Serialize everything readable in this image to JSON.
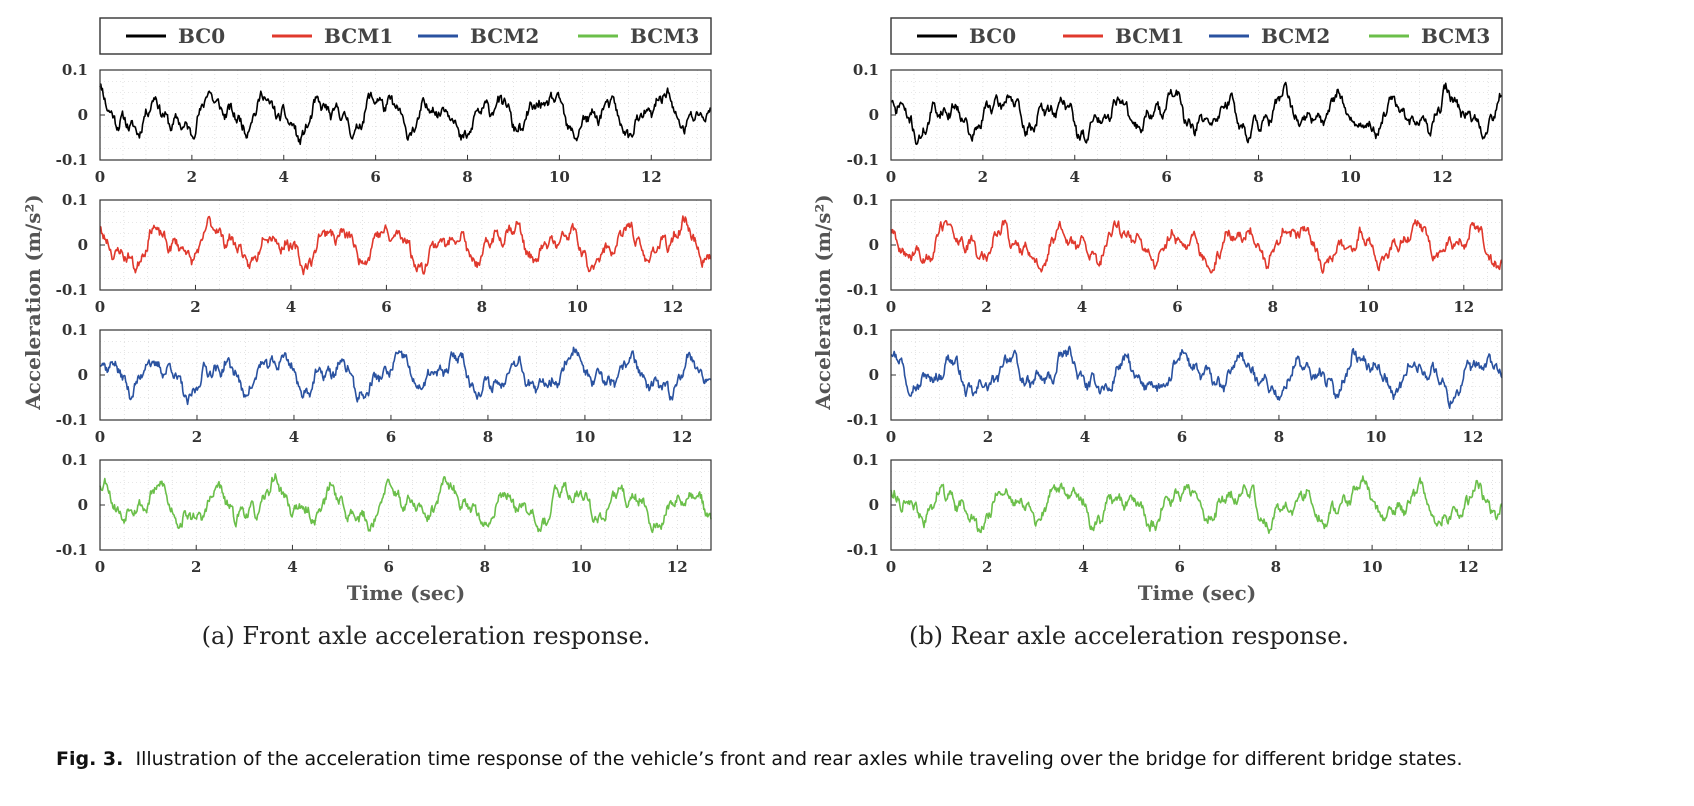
{
  "legend": {
    "entries": [
      {
        "name": "BC0",
        "color": "#000000"
      },
      {
        "name": "BCM1",
        "color": "#e0392d"
      },
      {
        "name": "BCM2",
        "color": "#2a52a0"
      },
      {
        "name": "BCM3",
        "color": "#6bbf4a"
      }
    ]
  },
  "figure_caption": {
    "label": "Fig. 3.",
    "text": "Illustration of the acceleration time response of the vehicle’s front and rear axles while traveling over the bridge for different bridge states."
  },
  "chart_data": [
    {
      "type": "line",
      "caption": "(a) Front axle acceleration response.",
      "xlabel": "Time (sec)",
      "ylabel": "Acceleration (m/s²)",
      "grid": true,
      "legend_position": "top",
      "subplots": [
        {
          "series_name": "BC0",
          "color": "#000000",
          "xlim": [
            0,
            13.3
          ],
          "xticks": [
            0,
            2,
            4,
            6,
            8,
            10,
            12
          ],
          "ylim": [
            -0.1,
            0.1
          ],
          "yticks": [
            -0.1,
            0,
            0.1
          ],
          "ytick_labels": [
            "-0.1",
            "0",
            "0.1"
          ]
        },
        {
          "series_name": "BCM1",
          "color": "#e0392d",
          "xlim": [
            0,
            12.8
          ],
          "xticks": [
            0,
            2,
            4,
            6,
            8,
            10,
            12
          ],
          "ylim": [
            -0.1,
            0.1
          ],
          "yticks": [
            -0.1,
            0,
            0.1
          ],
          "ytick_labels": [
            "-0.1",
            "0",
            "0.1"
          ]
        },
        {
          "series_name": "BCM2",
          "color": "#2a52a0",
          "xlim": [
            0,
            12.6
          ],
          "xticks": [
            0,
            2,
            4,
            6,
            8,
            10,
            12
          ],
          "ylim": [
            -0.1,
            0.1
          ],
          "yticks": [
            -0.1,
            0,
            0.1
          ],
          "ytick_labels": [
            "-0.1",
            "0",
            "0.1"
          ]
        },
        {
          "series_name": "BCM3",
          "color": "#6bbf4a",
          "xlim": [
            0,
            12.7
          ],
          "xticks": [
            0,
            2,
            4,
            6,
            8,
            10,
            12
          ],
          "ylim": [
            -0.1,
            0.1
          ],
          "yticks": [
            -0.1,
            0,
            0.1
          ],
          "ytick_labels": [
            "-0.1",
            "0",
            "0.1"
          ]
        }
      ]
    },
    {
      "type": "line",
      "caption": "(b) Rear axle acceleration response.",
      "xlabel": "Time (sec)",
      "ylabel": "Acceleration (m/s²)",
      "grid": true,
      "legend_position": "top",
      "subplots": [
        {
          "series_name": "BC0",
          "color": "#000000",
          "xlim": [
            0,
            13.3
          ],
          "xticks": [
            0,
            2,
            4,
            6,
            8,
            10,
            12
          ],
          "ylim": [
            -0.1,
            0.1
          ],
          "yticks": [
            -0.1,
            0,
            0.1
          ],
          "ytick_labels": [
            "-0.1",
            "0",
            "0.1"
          ]
        },
        {
          "series_name": "BCM1",
          "color": "#e0392d",
          "xlim": [
            0,
            12.8
          ],
          "xticks": [
            0,
            2,
            4,
            6,
            8,
            10,
            12
          ],
          "ylim": [
            -0.1,
            0.1
          ],
          "yticks": [
            -0.1,
            0,
            0.1
          ],
          "ytick_labels": [
            "-0.1",
            "0",
            "0.1"
          ]
        },
        {
          "series_name": "BCM2",
          "color": "#2a52a0",
          "xlim": [
            0,
            12.6
          ],
          "xticks": [
            0,
            2,
            4,
            6,
            8,
            10,
            12
          ],
          "ylim": [
            -0.1,
            0.1
          ],
          "yticks": [
            -0.1,
            0,
            0.1
          ],
          "ytick_labels": [
            "-0.1",
            "0",
            "0.1"
          ]
        },
        {
          "series_name": "BCM3",
          "color": "#6bbf4a",
          "xlim": [
            0,
            12.7
          ],
          "xticks": [
            0,
            2,
            4,
            6,
            8,
            10,
            12
          ],
          "ylim": [
            -0.1,
            0.1
          ],
          "yticks": [
            -0.1,
            0,
            0.1
          ],
          "ytick_labels": [
            "-0.1",
            "0",
            "0.1"
          ]
        }
      ]
    }
  ]
}
